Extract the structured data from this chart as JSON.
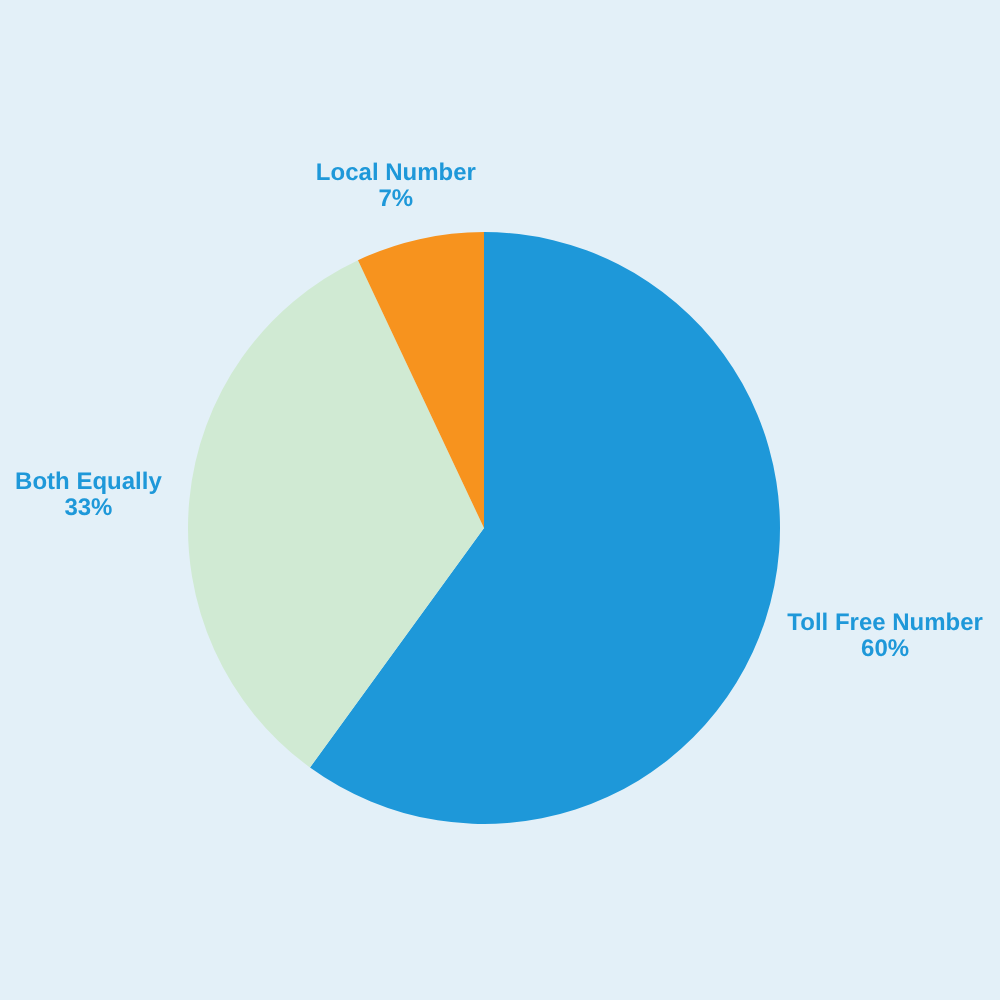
{
  "chart_data": {
    "type": "pie",
    "categories": [
      "Toll Free Number",
      "Both Equally",
      "Local Number"
    ],
    "values": [
      60,
      33,
      7
    ],
    "colors": [
      "#1e98d9",
      "#d0ead3",
      "#f7931e"
    ],
    "value_labels": [
      "60%",
      "33%",
      "7%"
    ],
    "legend": false
  }
}
